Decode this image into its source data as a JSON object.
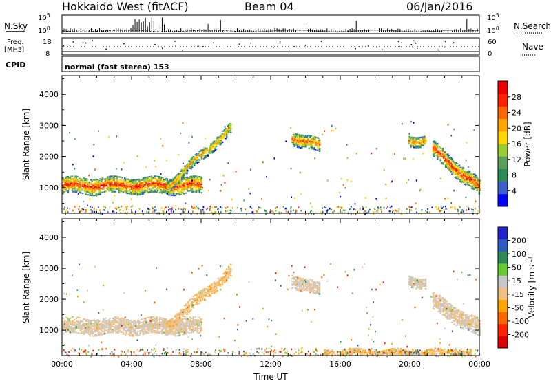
{
  "header": {
    "title": "Hokkaido West (fitACF)",
    "beam": "Beam 04",
    "date": "06/Jan/2016"
  },
  "top_panels": {
    "nsky_label": "N.Sky",
    "nsearch_label": "N.Search",
    "exp_hi": "10^5",
    "exp_lo": "10^0",
    "freq_label": "Freq.",
    "freq_unit": "[MHz]",
    "freq_ticks": [
      "18",
      "8"
    ],
    "nave_label": "Nave",
    "nave_ticks": [
      "60",
      "0"
    ],
    "cpid_label": "CPID",
    "cpid_text": "normal (fast stereo) 153"
  },
  "colors": {
    "power_scale": [
      "#0000ff",
      "#3a5fcd",
      "#2e8b57",
      "#5aa05a",
      "#9acd32",
      "#ffd700",
      "#ffa500",
      "#ff6600",
      "#ff2200",
      "#ee0000"
    ],
    "velocity_scale": [
      "#2222cc",
      "#2e5bbf",
      "#2e8b57",
      "#66cc33",
      "#c8c8c8",
      "#f0c080",
      "#ffa500",
      "#ff6600",
      "#ff2200",
      "#dd0000"
    ]
  },
  "chart_data": [
    {
      "type": "heatmap",
      "name": "power",
      "xlabel": "",
      "ylabel": "Slant Range [km]",
      "xlim": [
        0,
        24
      ],
      "ylim": [
        180,
        4600
      ],
      "yticks": [
        "1000",
        "2000",
        "3000",
        "4000"
      ],
      "xticks": [
        "00:00",
        "04:00",
        "08:00",
        "12:00",
        "16:00",
        "20:00",
        "00:00"
      ],
      "colorbar": {
        "label": "Power [dB]",
        "ticks": [
          "4",
          "8",
          "12",
          "16",
          "20",
          "24",
          "28"
        ],
        "range": [
          0,
          30
        ]
      },
      "blobs": [
        {
          "x": [
            0.0,
            8.0
          ],
          "y_center": [
            1050,
            1050
          ],
          "thickness": 520,
          "peak": 26
        },
        {
          "x": [
            6.0,
            9.7
          ],
          "y_center": [
            1000,
            2900
          ],
          "thickness": 350,
          "peak": 20
        },
        {
          "x": [
            13.2,
            14.8
          ],
          "y_center": [
            2600,
            2300
          ],
          "thickness": 420,
          "peak": 24
        },
        {
          "x": [
            19.9,
            20.9
          ],
          "y_center": [
            2500,
            2500
          ],
          "thickness": 350,
          "peak": 22
        },
        {
          "x": [
            21.3,
            24.0
          ],
          "y_center": [
            2200,
            950
          ],
          "thickness": 500,
          "peak": 26
        }
      ]
    },
    {
      "type": "heatmap",
      "name": "velocity",
      "xlabel": "Time UT",
      "ylabel": "Slant Range [km]",
      "xlim": [
        0,
        24
      ],
      "ylim": [
        180,
        4600
      ],
      "yticks": [
        "1000",
        "2000",
        "3000",
        "4000"
      ],
      "xticks": [
        "00:00",
        "04:00",
        "08:00",
        "12:00",
        "16:00",
        "20:00",
        "00:00"
      ],
      "colorbar": {
        "label": "Velocity [m s^-1]",
        "ticks": [
          "200",
          "100",
          "50",
          "15",
          "-15",
          "-50",
          "-100",
          "-200"
        ],
        "range": [
          -250,
          250
        ]
      },
      "blobs": [
        {
          "x": [
            0.0,
            8.0
          ],
          "y_center": [
            1100,
            1100
          ],
          "thickness": 500,
          "vel": 0
        },
        {
          "x": [
            6.0,
            9.7
          ],
          "y_center": [
            1100,
            2900
          ],
          "thickness": 380,
          "vel": -30
        },
        {
          "x": [
            13.2,
            14.8
          ],
          "y_center": [
            2600,
            2250
          ],
          "thickness": 420,
          "vel": 5
        },
        {
          "x": [
            19.9,
            20.9
          ],
          "y_center": [
            2600,
            2500
          ],
          "thickness": 350,
          "vel": 5
        },
        {
          "x": [
            21.3,
            24.0
          ],
          "y_center": [
            1900,
            1000
          ],
          "thickness": 550,
          "vel": 0
        },
        {
          "x": [
            15.0,
            23.5
          ],
          "y_center": [
            250,
            250
          ],
          "thickness": 200,
          "vel": -40
        }
      ]
    }
  ]
}
